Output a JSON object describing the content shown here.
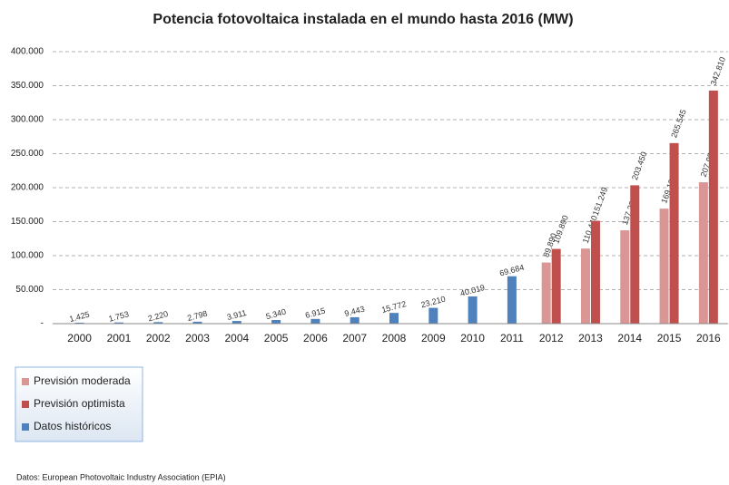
{
  "chart_data": {
    "type": "bar",
    "title": "Potencia fotovoltaica instalada en el mundo hasta 2016 (MW)",
    "categories": [
      "2000",
      "2001",
      "2002",
      "2003",
      "2004",
      "2005",
      "2006",
      "2007",
      "2008",
      "2009",
      "2010",
      "2011",
      "2012",
      "2013",
      "2014",
      "2015",
      "2016"
    ],
    "series": [
      {
        "name": "Previsión moderada",
        "color": "#d99694",
        "values": [
          null,
          null,
          null,
          null,
          null,
          null,
          null,
          null,
          null,
          null,
          null,
          null,
          89890,
          110440,
          137230,
          169120,
          207950
        ],
        "value_labels": [
          null,
          null,
          null,
          null,
          null,
          null,
          null,
          null,
          null,
          null,
          null,
          null,
          "89.890",
          "110.440",
          "137.230",
          "169.120",
          "207.950"
        ]
      },
      {
        "name": "Previsión optimista",
        "color": "#c0504d",
        "values": [
          null,
          null,
          null,
          null,
          null,
          null,
          null,
          null,
          null,
          null,
          null,
          null,
          109890,
          151249,
          203450,
          265545,
          342810
        ],
        "value_labels": [
          null,
          null,
          null,
          null,
          null,
          null,
          null,
          null,
          null,
          null,
          null,
          null,
          "109.890",
          "151.249",
          "203.450",
          "265.545",
          "342.810"
        ]
      },
      {
        "name": "Datos históricos",
        "color": "#4f81bd",
        "values": [
          1425,
          1753,
          2220,
          2798,
          3911,
          5340,
          6915,
          9443,
          15772,
          23210,
          40019,
          69684,
          null,
          null,
          null,
          null,
          null
        ],
        "value_labels": [
          "1.425",
          "1.753",
          "2.220",
          "2.798",
          "3.911",
          "5.340",
          "6.915",
          "9.443",
          "15.772",
          "23.210",
          "40.019",
          "69.684",
          null,
          null,
          null,
          null,
          null
        ]
      }
    ],
    "ylim": [
      0,
      400000
    ],
    "yticks": [
      {
        "value": 0,
        "label": "-"
      },
      {
        "value": 50000,
        "label": "50.000"
      },
      {
        "value": 100000,
        "label": "100.000"
      },
      {
        "value": 150000,
        "label": "150.000"
      },
      {
        "value": 200000,
        "label": "200.000"
      },
      {
        "value": 250000,
        "label": "250.000"
      },
      {
        "value": 300000,
        "label": "300.000"
      },
      {
        "value": 350000,
        "label": "350.000"
      },
      {
        "value": 400000,
        "label": "400.000"
      }
    ],
    "grid": true,
    "legend": "bottom-left",
    "source": "Datos: European Photovoltaic Industry Association (EPIA)"
  }
}
